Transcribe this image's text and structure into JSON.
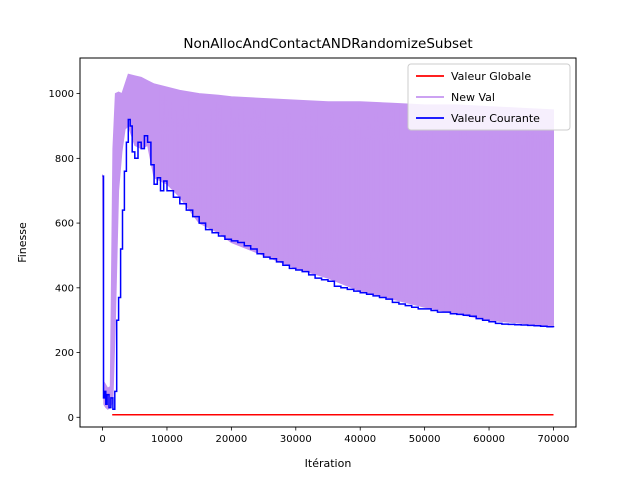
{
  "chart_data": {
    "type": "line",
    "title": "NonAllocAndContactANDRandomizeSubset",
    "xlabel": "Itération",
    "ylabel": "Finesse",
    "xlim": [
      -3500,
      73500
    ],
    "ylim": [
      -30,
      1110
    ],
    "xticks": [
      0,
      10000,
      20000,
      30000,
      40000,
      50000,
      60000,
      70000
    ],
    "xtick_labels": [
      "0",
      "10000",
      "20000",
      "30000",
      "40000",
      "50000",
      "60000",
      "70000"
    ],
    "yticks": [
      0,
      200,
      400,
      600,
      800,
      1000
    ],
    "ytick_labels": [
      "0",
      "200",
      "400",
      "600",
      "800",
      "1000"
    ],
    "grid": false,
    "legend_position": "top-right",
    "series": [
      {
        "name": "Valeur Globale",
        "color": "#ff0000",
        "x": [
          1500,
          70000
        ],
        "y": [
          8,
          8
        ]
      },
      {
        "name": "New Val",
        "color": "#c495f0",
        "kind": "band",
        "x": [
          0,
          200,
          500,
          800,
          1200,
          1600,
          2000,
          2500,
          3000,
          3500,
          4000,
          5000,
          6000,
          7000,
          8000,
          10000,
          12000,
          15000,
          18000,
          20000,
          25000,
          30000,
          35000,
          40000,
          45000,
          50000,
          55000,
          60000,
          65000,
          70000
        ],
        "upper": [
          750,
          110,
          100,
          90,
          95,
          830,
          1000,
          1005,
          1000,
          1030,
          1060,
          1055,
          1050,
          1040,
          1030,
          1020,
          1010,
          1000,
          995,
          990,
          985,
          980,
          975,
          975,
          970,
          965,
          965,
          960,
          955,
          950
        ],
        "lower": [
          740,
          40,
          30,
          25,
          30,
          50,
          300,
          700,
          820,
          890,
          900,
          840,
          830,
          840,
          740,
          720,
          680,
          600,
          570,
          540,
          500,
          460,
          430,
          390,
          365,
          340,
          320,
          300,
          290,
          280
        ],
        "spike_low": 280,
        "spike_upper_from": 850,
        "spike_upper_to": 950
      },
      {
        "name": "Valeur Courante",
        "color": "#0000ff",
        "x": [
          0,
          150,
          300,
          500,
          700,
          1000,
          1300,
          1600,
          1900,
          2200,
          2500,
          2800,
          3100,
          3400,
          3700,
          4000,
          4300,
          4600,
          5000,
          5500,
          6000,
          6500,
          7000,
          7500,
          8000,
          8500,
          9000,
          9500,
          10000,
          11000,
          12000,
          13000,
          14000,
          15000,
          16000,
          17000,
          18000,
          19000,
          20000,
          21000,
          22000,
          23000,
          24000,
          25000,
          26000,
          27000,
          28000,
          29000,
          30000,
          31000,
          32000,
          33000,
          34000,
          35000,
          36000,
          37000,
          38000,
          39000,
          40000,
          41000,
          42000,
          43000,
          44000,
          45000,
          46000,
          47000,
          48000,
          49000,
          50000,
          51000,
          52000,
          53000,
          54000,
          55000,
          56000,
          57000,
          58000,
          59000,
          60000,
          61000,
          62000,
          63000,
          64000,
          65000,
          66000,
          67000,
          68000,
          69000,
          70000
        ],
        "y": [
          745,
          60,
          80,
          40,
          70,
          30,
          60,
          25,
          80,
          300,
          370,
          520,
          640,
          760,
          850,
          920,
          900,
          820,
          800,
          850,
          830,
          870,
          850,
          780,
          720,
          740,
          700,
          730,
          700,
          680,
          660,
          640,
          620,
          600,
          580,
          570,
          560,
          550,
          545,
          540,
          530,
          520,
          505,
          495,
          490,
          480,
          470,
          460,
          455,
          450,
          440,
          430,
          425,
          420,
          405,
          400,
          395,
          390,
          385,
          380,
          375,
          370,
          365,
          355,
          350,
          345,
          340,
          335,
          335,
          330,
          325,
          325,
          320,
          318,
          315,
          312,
          305,
          300,
          295,
          290,
          288,
          287,
          286,
          285,
          284,
          283,
          281,
          280,
          278
        ]
      }
    ]
  }
}
